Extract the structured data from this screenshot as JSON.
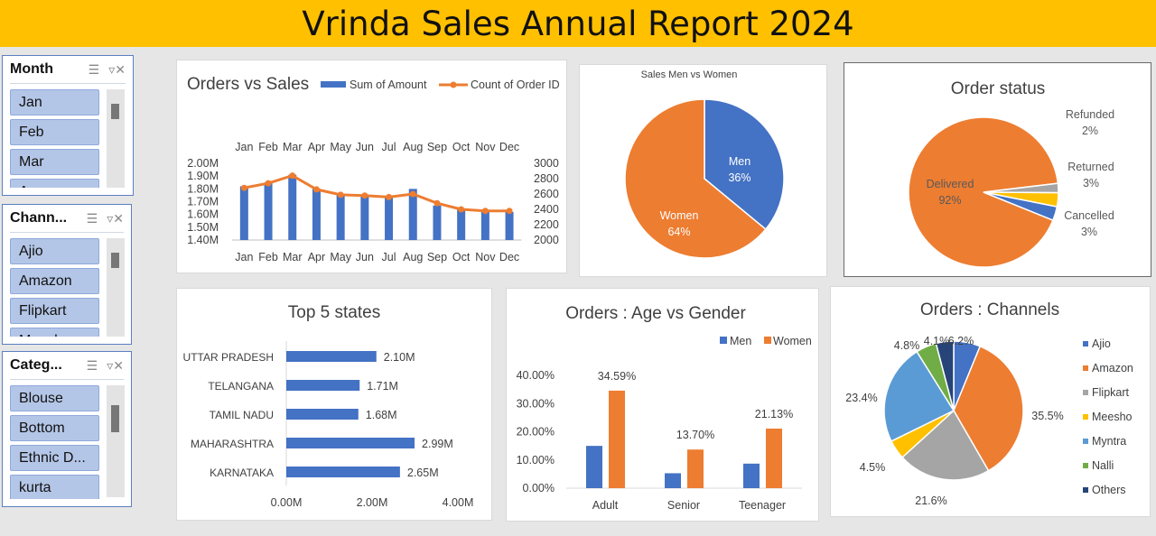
{
  "header": {
    "title": "Vrinda Sales Annual Report 2024"
  },
  "slicers": [
    {
      "title": "Month",
      "items": [
        "Jan",
        "Feb",
        "Mar",
        "Apr"
      ]
    },
    {
      "title": "Chann...",
      "items": [
        "Ajio",
        "Amazon",
        "Flipkart",
        "Meesho"
      ]
    },
    {
      "title": "Categ...",
      "items": [
        "Blouse",
        "Bottom",
        "Ethnic D...",
        "kurta"
      ]
    }
  ],
  "chart_data": [
    {
      "id": "orders-vs-sales",
      "type": "bar",
      "title": "Orders vs Sales",
      "categories": [
        "Jan",
        "Feb",
        "Mar",
        "Apr",
        "May",
        "Jun",
        "Jul",
        "Aug",
        "Sep",
        "Oct",
        "Nov",
        "Dec"
      ],
      "series": [
        {
          "name": "Sum of Amount",
          "type": "bar",
          "axis": "left",
          "color": "#4472c4",
          "values": [
            1.82,
            1.85,
            1.91,
            1.8,
            1.76,
            1.75,
            1.74,
            1.8,
            1.67,
            1.64,
            1.62,
            1.62
          ]
        },
        {
          "name": "Count of Order ID",
          "type": "line",
          "axis": "right",
          "color": "#ed7d31",
          "values": [
            2680,
            2740,
            2840,
            2660,
            2590,
            2580,
            2560,
            2600,
            2480,
            2400,
            2380,
            2380
          ]
        }
      ],
      "y_left_ticks": [
        "2.00M",
        "1.90M",
        "1.80M",
        "1.70M",
        "1.60M",
        "1.50M",
        "1.40M"
      ],
      "ylim_left": [
        1.4,
        2.0
      ],
      "y_right_ticks": [
        "3000",
        "2800",
        "2600",
        "2400",
        "2200",
        "2000"
      ],
      "ylim_right": [
        2000,
        3000
      ]
    },
    {
      "id": "sales-men-women",
      "type": "pie",
      "title": "Sales Men vs Women",
      "slices": [
        {
          "label": "Men",
          "percent_label": "36%",
          "value": 36,
          "color": "#4472c4"
        },
        {
          "label": "Women",
          "percent_label": "64%",
          "value": 64,
          "color": "#ed7d31"
        }
      ]
    },
    {
      "id": "order-status",
      "type": "pie",
      "title": "Order status",
      "slices": [
        {
          "label": "Delivered",
          "percent_label": "92%",
          "value": 92,
          "color": "#ed7d31"
        },
        {
          "label": "Refunded",
          "percent_label": "2%",
          "value": 2,
          "color": "#a5a5a5"
        },
        {
          "label": "Returned",
          "percent_label": "3%",
          "value": 3,
          "color": "#ffc000"
        },
        {
          "label": "Cancelled",
          "percent_label": "3%",
          "value": 3,
          "color": "#4472c4"
        }
      ]
    },
    {
      "id": "top-5-states",
      "type": "bar",
      "orientation": "horizontal",
      "title": "Top 5 states",
      "categories": [
        "UTTAR PRADESH",
        "TELANGANA",
        "TAMIL NADU",
        "MAHARASHTRA",
        "KARNATAKA"
      ],
      "values": [
        2.1,
        1.71,
        1.68,
        2.99,
        2.65
      ],
      "value_labels": [
        "2.10M",
        "1.71M",
        "1.68M",
        "2.99M",
        "2.65M"
      ],
      "x_ticks": [
        "0.00M",
        "2.00M",
        "4.00M"
      ],
      "xlim": [
        0,
        4
      ],
      "color": "#4472c4"
    },
    {
      "id": "age-vs-gender",
      "type": "bar",
      "title": "Orders : Age vs Gender",
      "categories": [
        "Adult",
        "Senior",
        "Teenager"
      ],
      "series": [
        {
          "name": "Men",
          "color": "#4472c4",
          "values": [
            15.0,
            5.3,
            8.7
          ]
        },
        {
          "name": "Women",
          "color": "#ed7d31",
          "values": [
            34.59,
            13.7,
            21.13
          ],
          "labels": [
            "34.59%",
            "13.70%",
            "21.13%"
          ]
        }
      ],
      "y_ticks": [
        "40.00%",
        "30.00%",
        "20.00%",
        "10.00%",
        "0.00%"
      ],
      "ylim": [
        0,
        40
      ]
    },
    {
      "id": "orders-channels",
      "type": "pie",
      "title": "Orders : Channels",
      "slices": [
        {
          "label": "Ajio",
          "percent_label": "6.2%",
          "value": 6.2,
          "color": "#4472c4"
        },
        {
          "label": "Amazon",
          "percent_label": "35.5%",
          "value": 35.5,
          "color": "#ed7d31"
        },
        {
          "label": "Flipkart",
          "percent_label": "21.6%",
          "value": 21.6,
          "color": "#a5a5a5"
        },
        {
          "label": "Meesho",
          "percent_label": "4.5%",
          "value": 4.5,
          "color": "#ffc000"
        },
        {
          "label": "Myntra",
          "percent_label": "23.4%",
          "value": 23.4,
          "color": "#5b9bd5"
        },
        {
          "label": "Nalli",
          "percent_label": "4.8%",
          "value": 4.8,
          "color": "#70ad47"
        },
        {
          "label": "Others",
          "percent_label": "4.1%",
          "value": 4.1,
          "color": "#264478"
        }
      ]
    }
  ]
}
